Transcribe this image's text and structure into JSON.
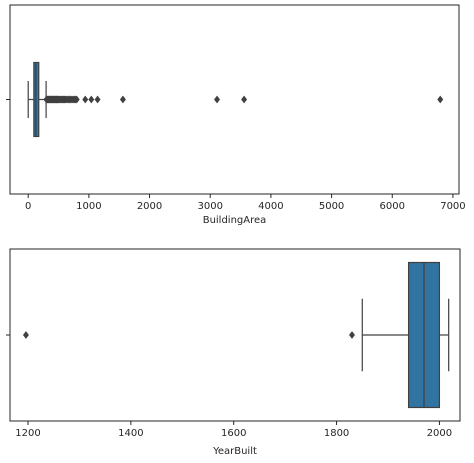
{
  "chart_data": [
    {
      "type": "box",
      "orientation": "horizontal",
      "xlabel": "BuildingArea",
      "xlim": [
        -300,
        7100
      ],
      "xticks": [
        0,
        1000,
        2000,
        3000,
        4000,
        5000,
        6000,
        7000
      ],
      "xtick_labels": [
        "0",
        "1000",
        "2000",
        "3000",
        "4000",
        "5000",
        "6000",
        "7000"
      ],
      "yticks": [
        ""
      ],
      "grid": false,
      "box_color": "#3274a1",
      "line_color": "#404040",
      "box": {
        "whisker_low": 0,
        "q1": 93,
        "median": 126,
        "q3": 174,
        "whisker_high": 295
      },
      "outliers": [
        300,
        310,
        320,
        330,
        340,
        350,
        360,
        370,
        380,
        390,
        400,
        410,
        420,
        430,
        440,
        450,
        460,
        470,
        480,
        490,
        500,
        515,
        530,
        545,
        560,
        575,
        590,
        605,
        620,
        640,
        660,
        680,
        700,
        720,
        740,
        760,
        780,
        800,
        940,
        1040,
        1143,
        1561,
        3112,
        3558,
        6791
      ]
    },
    {
      "type": "box",
      "orientation": "horizontal",
      "xlabel": "YearBuilt",
      "xlim": [
        1165,
        2040
      ],
      "xticks": [
        1200,
        1400,
        1600,
        1800,
        2000
      ],
      "xtick_labels": [
        "1200",
        "1400",
        "1600",
        "1800",
        "2000"
      ],
      "yticks": [
        ""
      ],
      "grid": false,
      "box_color": "#3274a1",
      "line_color": "#404040",
      "box": {
        "whisker_low": 1850,
        "q1": 1940,
        "median": 1970,
        "q3": 2000,
        "whisker_high": 2018
      },
      "outliers": [
        1196,
        1830
      ]
    }
  ]
}
